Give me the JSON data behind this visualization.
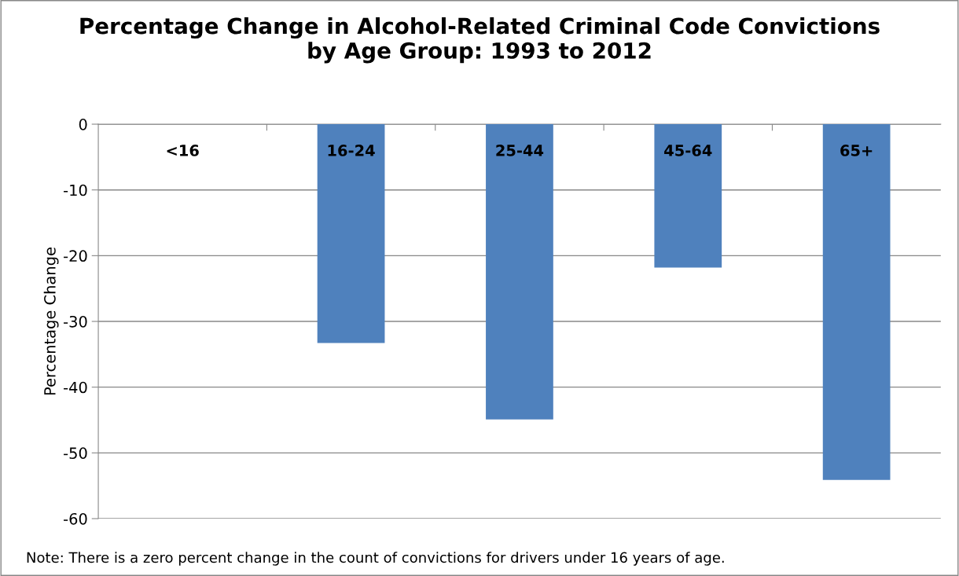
{
  "chart_data": {
    "type": "bar",
    "title": "Percentage Change in Alcohol-Related Criminal Code Convictions\nby Age Group: 1993 to 2012",
    "ylabel": "Percentage Change",
    "categories": [
      "<16",
      "16-24",
      "25-44",
      "45-64",
      "65+"
    ],
    "values": [
      0,
      -33.3,
      -44.9,
      -21.8,
      -54.1
    ],
    "color": "#4f81bd",
    "ylim": [
      -60,
      0
    ],
    "yticks": [
      -60,
      -50,
      -40,
      -30,
      -20,
      -10,
      0
    ],
    "grid": "y",
    "annotations": [
      "Note: There is a zero percent change in the count of convictions for drivers under 16 years of age."
    ]
  }
}
